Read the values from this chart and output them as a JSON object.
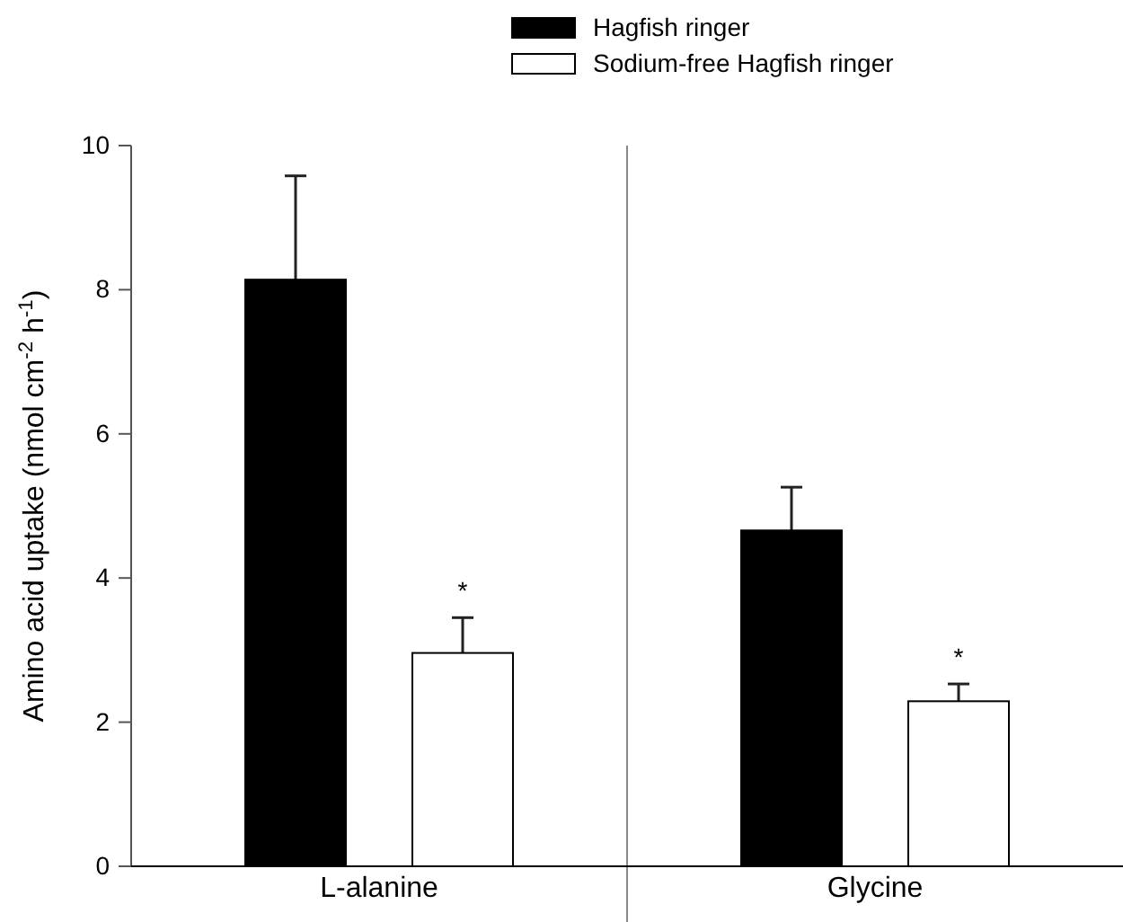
{
  "chart_data": {
    "type": "bar",
    "ylabel": "Amino acid uptake (nmol cm$^{-2}$ h$^{-1}$)",
    "categories": [
      "L-alanine",
      "Glycine"
    ],
    "series": [
      {
        "name": "Hagfish ringer",
        "color": "#000000",
        "values": [
          8.14,
          4.66
        ],
        "errors": [
          [
            8.14,
            9.58
          ],
          [
            4.66,
            5.26
          ]
        ]
      },
      {
        "name": "Sodium-free Hagfish ringer",
        "color": "#ffffff",
        "values": [
          2.96,
          2.29
        ],
        "errors": [
          [
            2.96,
            3.45
          ],
          [
            2.29,
            2.53
          ]
        ]
      }
    ],
    "ylim": [
      0,
      10
    ],
    "yticks": [
      0,
      2,
      4,
      6,
      8,
      10
    ],
    "legend": "top",
    "annotations": [
      "*",
      "*"
    ]
  }
}
